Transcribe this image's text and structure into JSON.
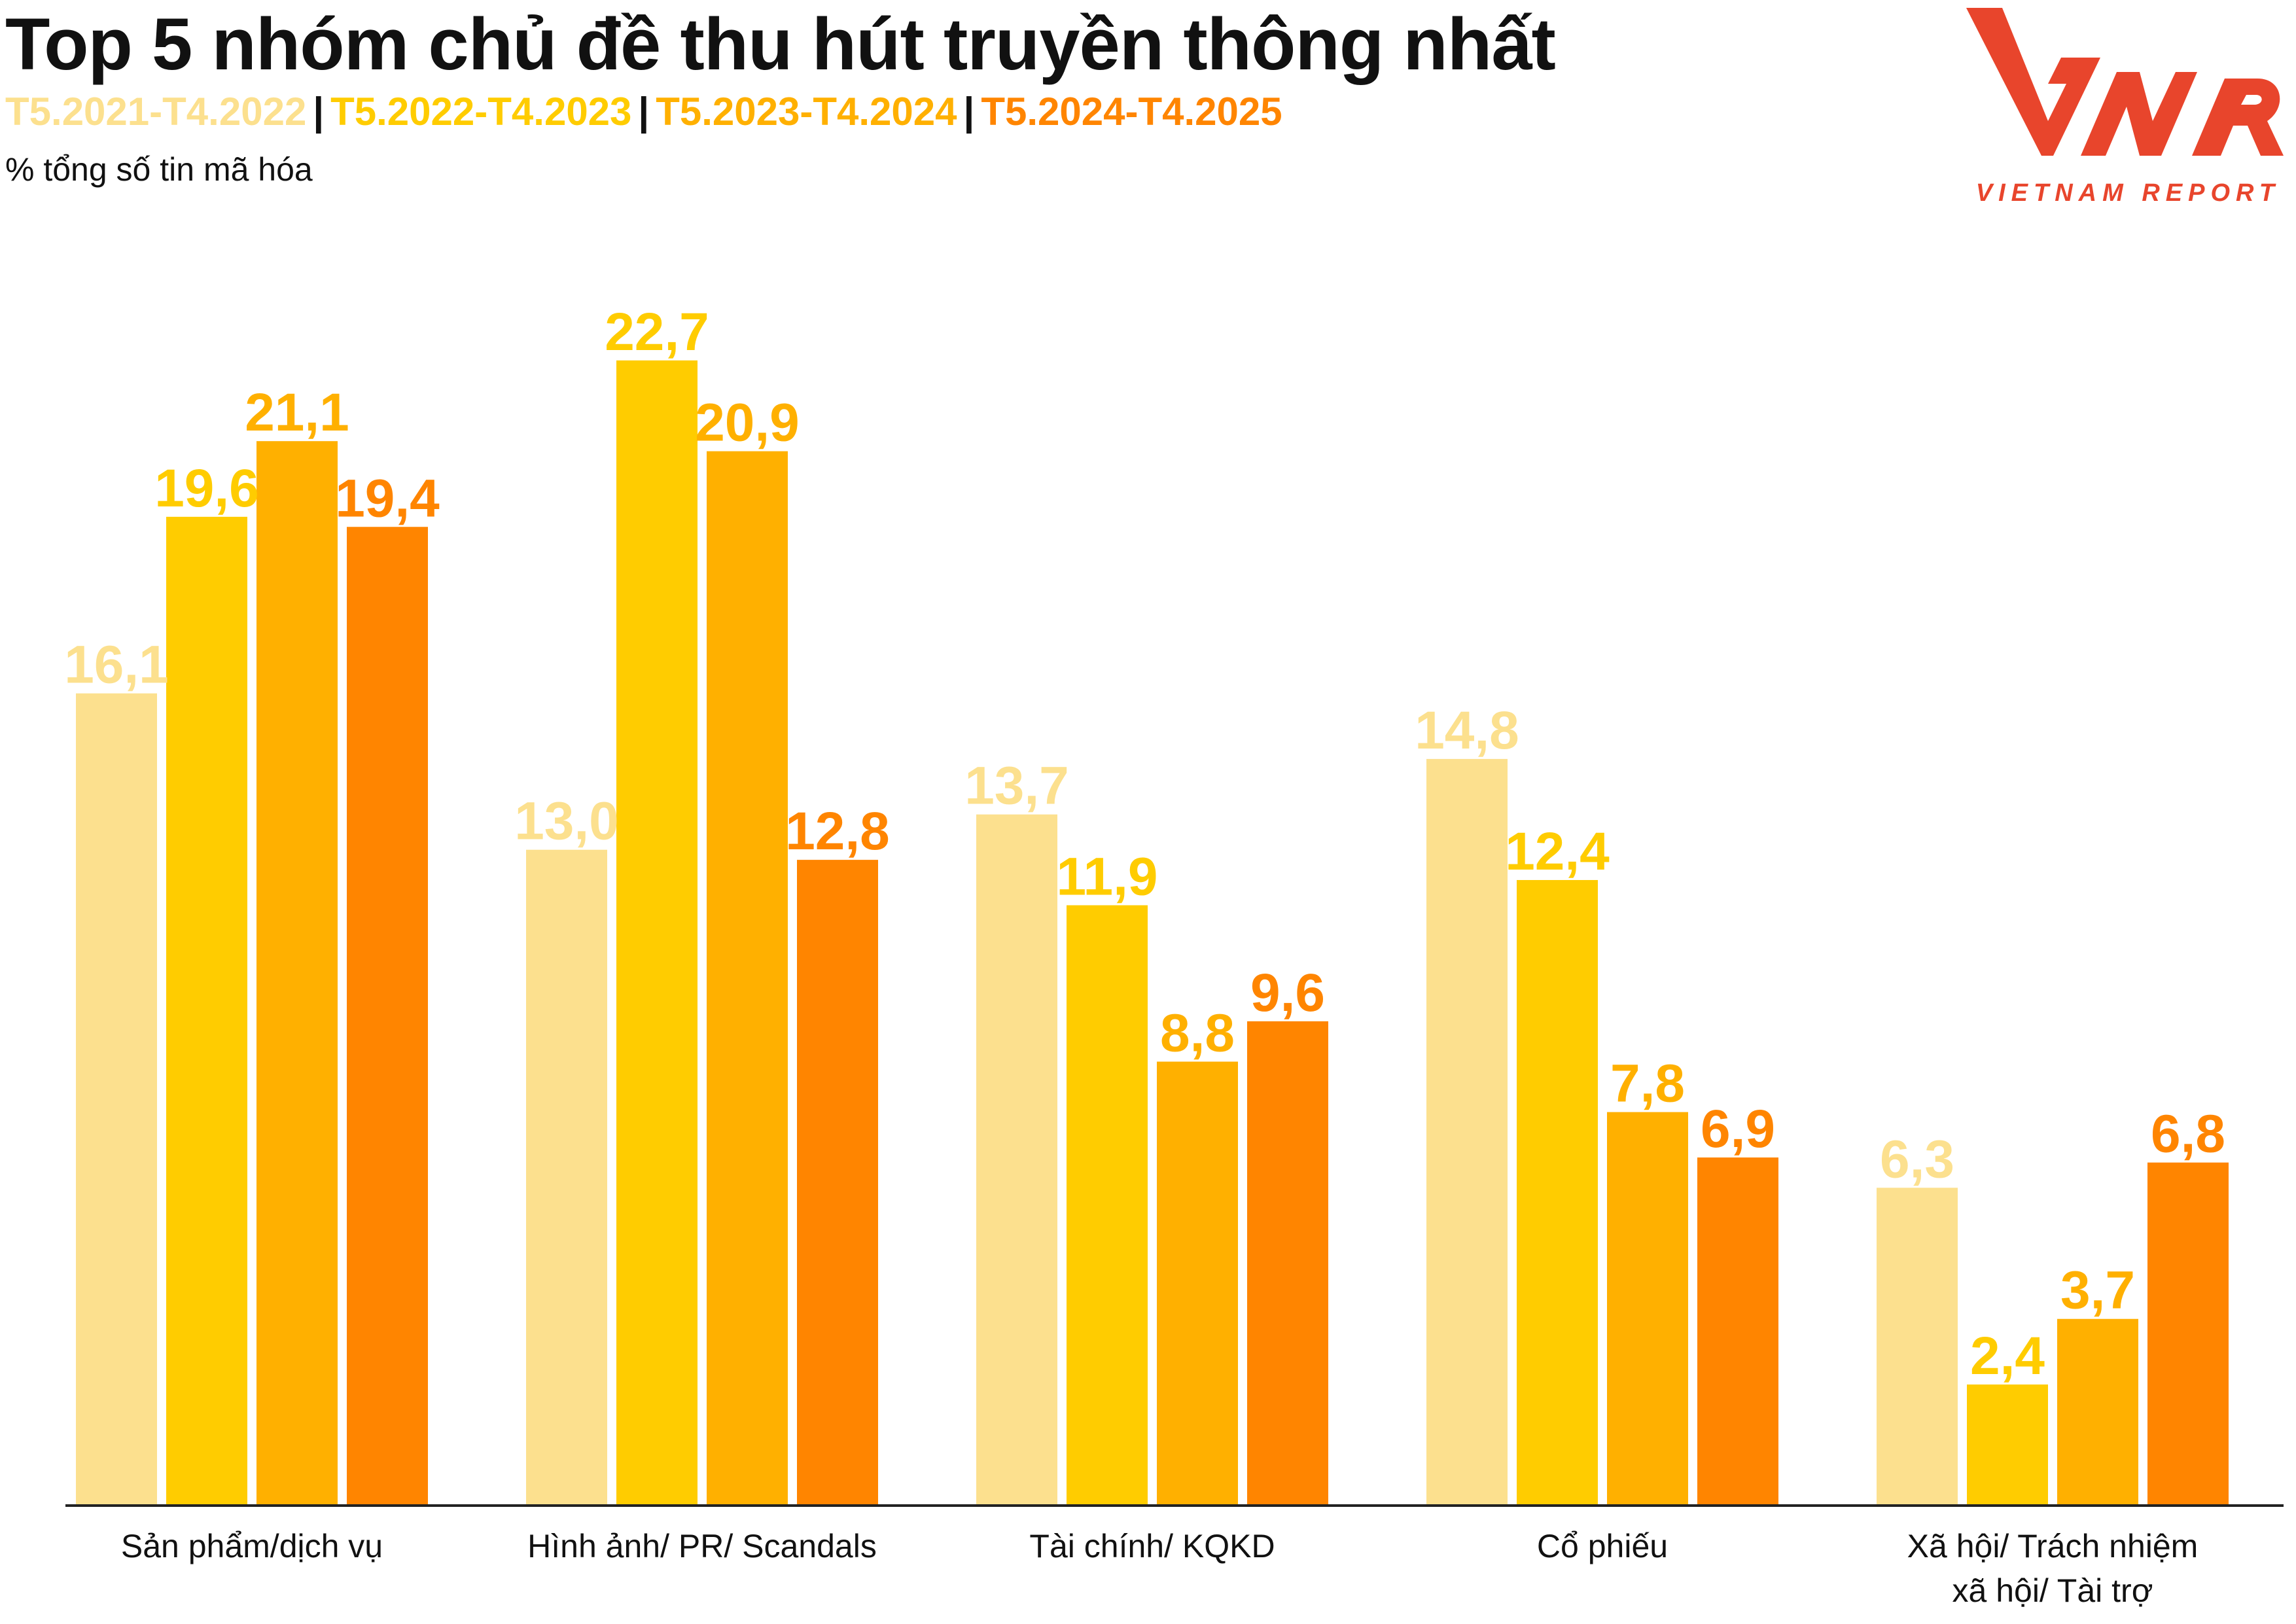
{
  "title": "Top 5 nhóm chủ đề thu hút truyền thông nhất",
  "subtitle": "% tổng số tin mã hóa",
  "legend_separator": "|",
  "logo": {
    "mark": "VNR",
    "text": "VIETNAM REPORT",
    "color": "#E8452C"
  },
  "chart_data": {
    "type": "bar",
    "categories": [
      [
        "Sản phẩm/dịch vụ"
      ],
      [
        "Hình ảnh/ PR/ Scandals"
      ],
      [
        "Tài chính/ KQKD"
      ],
      [
        "Cổ phiếu"
      ],
      [
        "Xã hội/ Trách nhiệm",
        "xã hội/ Tài trợ"
      ]
    ],
    "series": [
      {
        "name": "T5.2021-T4.2022",
        "color": "#FCE08E",
        "values": [
          16.1,
          13.0,
          13.7,
          14.8,
          6.3
        ]
      },
      {
        "name": "T5.2022-T4.2023",
        "color": "#FFCC00",
        "values": [
          19.6,
          22.7,
          11.9,
          12.4,
          2.4
        ]
      },
      {
        "name": "T5.2023-T4.2024",
        "color": "#FFB000",
        "values": [
          21.1,
          20.9,
          8.8,
          7.8,
          3.7
        ]
      },
      {
        "name": "T5.2024-T4.2025",
        "color": "#FF8500",
        "values": [
          19.4,
          12.8,
          9.6,
          6.9,
          6.8
        ]
      }
    ],
    "ylim": [
      0,
      25
    ],
    "decimal_separator": ",",
    "grid": false,
    "legend_position": "top-left"
  }
}
